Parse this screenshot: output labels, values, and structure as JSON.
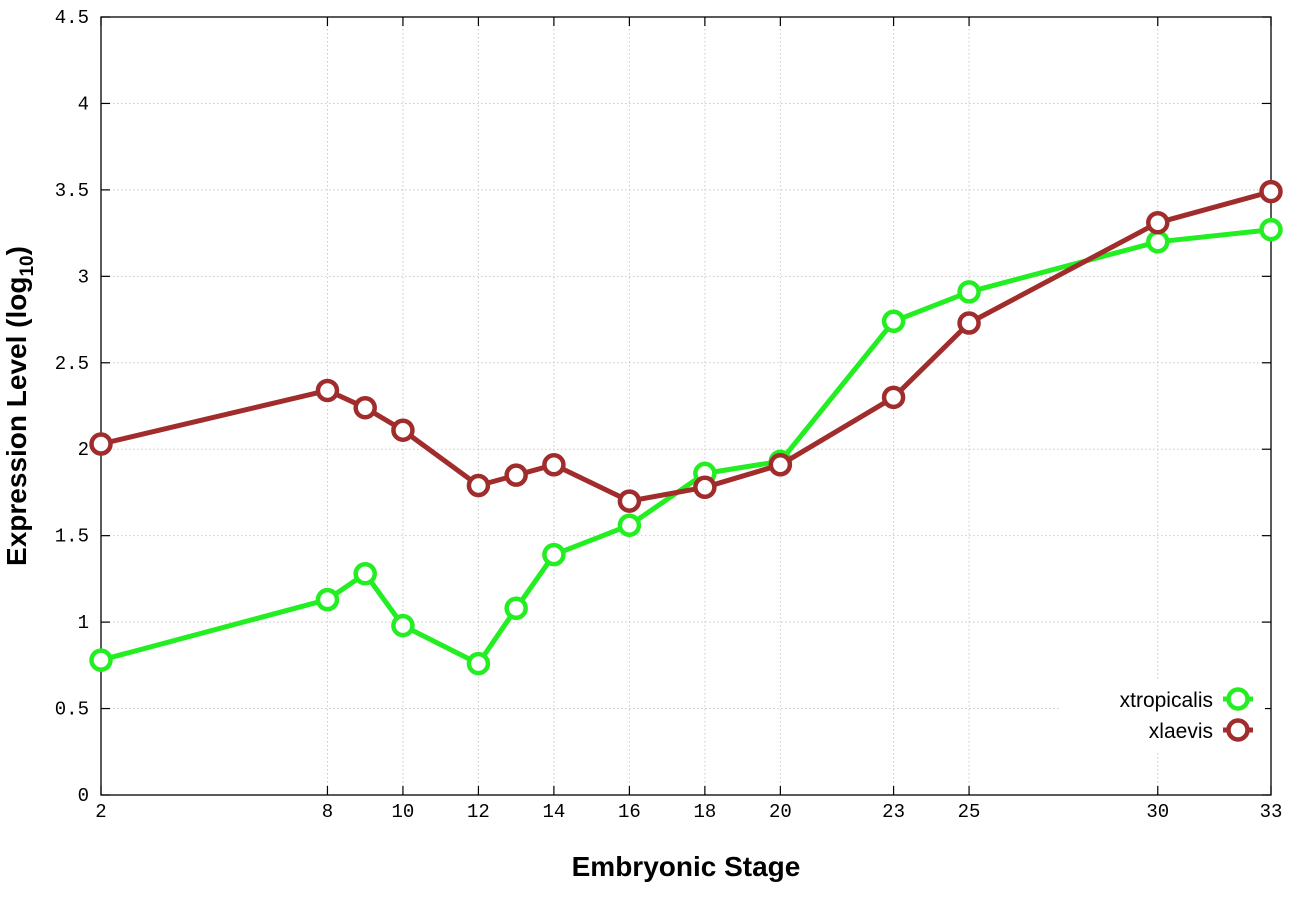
{
  "chart_data": {
    "type": "line",
    "xlabel": "Embryonic Stage",
    "ylabel_main": "Expression Level (log",
    "ylabel_sub": "10",
    "ylabel_close": ")",
    "xlim": [
      2,
      33
    ],
    "ylim": [
      0,
      4.5
    ],
    "x_ticks": [
      2,
      8,
      10,
      12,
      14,
      16,
      18,
      20,
      23,
      25,
      30,
      33
    ],
    "x_tick_labels": [
      "2",
      "8",
      "10",
      "12",
      "14",
      "16",
      "18",
      "20",
      "23",
      "25",
      "30",
      "33"
    ],
    "y_ticks": [
      0,
      0.5,
      1,
      1.5,
      2,
      2.5,
      3,
      3.5,
      4,
      4.5
    ],
    "y_tick_labels": [
      "0",
      "0.5",
      "1",
      "1.5",
      "2",
      "2.5",
      "3",
      "3.5",
      "4",
      "4.5"
    ],
    "grid": true,
    "legend_position": "bottom-right",
    "series": [
      {
        "name": "xtropicalis",
        "color": "#22ee22",
        "x": [
          2,
          8,
          9,
          10,
          12,
          13,
          14,
          16,
          18,
          20,
          23,
          25,
          30,
          33
        ],
        "values": [
          0.78,
          1.13,
          1.28,
          0.98,
          0.76,
          1.08,
          1.39,
          1.56,
          1.86,
          1.93,
          2.74,
          2.91,
          3.2,
          3.27
        ]
      },
      {
        "name": "xlaevis",
        "color": "#a02c2c",
        "x": [
          2,
          8,
          9,
          10,
          12,
          13,
          14,
          16,
          18,
          20,
          23,
          25,
          30,
          33
        ],
        "values": [
          2.03,
          2.34,
          2.24,
          2.11,
          1.79,
          1.85,
          1.91,
          1.7,
          1.78,
          1.91,
          2.3,
          2.73,
          3.31,
          3.49
        ]
      }
    ]
  }
}
